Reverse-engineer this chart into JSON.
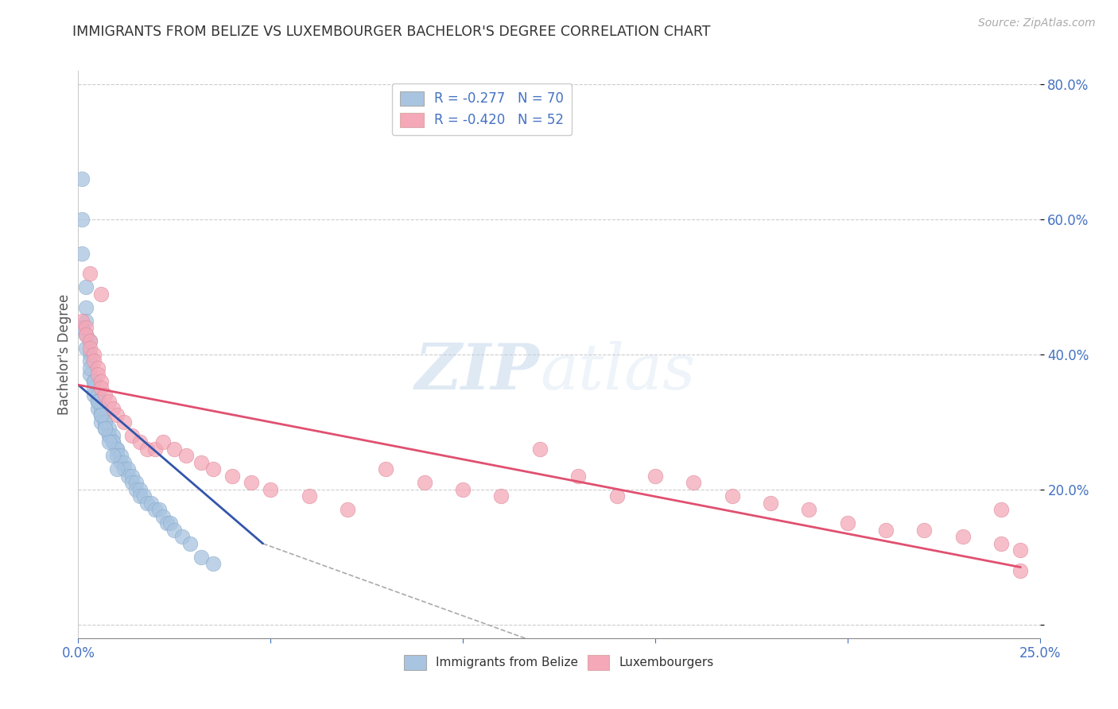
{
  "title": "IMMIGRANTS FROM BELIZE VS LUXEMBOURGER BACHELOR'S DEGREE CORRELATION CHART",
  "source_text": "Source: ZipAtlas.com",
  "ylabel": "Bachelor's Degree",
  "right_ytick_vals": [
    0.0,
    0.2,
    0.4,
    0.6,
    0.8
  ],
  "right_yticklabels": [
    "",
    "20.0%",
    "40.0%",
    "60.0%",
    "80.0%"
  ],
  "xlim": [
    0.0,
    0.25
  ],
  "ylim": [
    -0.02,
    0.82
  ],
  "xtick_vals": [
    0.0,
    0.05,
    0.1,
    0.15,
    0.2,
    0.25
  ],
  "xticklabels": [
    "0.0%",
    "",
    "",
    "",
    "",
    "25.0%"
  ],
  "legend_r1": "R = -0.277   N = 70",
  "legend_r2": "R = -0.420   N = 52",
  "blue_color": "#a8c4e0",
  "pink_color": "#f4a8b8",
  "blue_line_color": "#3355aa",
  "pink_line_color": "#e05070",
  "watermark_zip": "ZIP",
  "watermark_atlas": "atlas",
  "background_color": "#ffffff",
  "grid_color": "#cccccc",
  "blue_scatter_x": [
    0.001,
    0.001,
    0.001,
    0.002,
    0.002,
    0.002,
    0.002,
    0.003,
    0.003,
    0.003,
    0.003,
    0.004,
    0.004,
    0.004,
    0.004,
    0.005,
    0.005,
    0.005,
    0.005,
    0.006,
    0.006,
    0.006,
    0.006,
    0.007,
    0.007,
    0.007,
    0.008,
    0.008,
    0.008,
    0.009,
    0.009,
    0.009,
    0.01,
    0.01,
    0.01,
    0.011,
    0.011,
    0.012,
    0.012,
    0.013,
    0.013,
    0.014,
    0.014,
    0.015,
    0.015,
    0.016,
    0.016,
    0.017,
    0.018,
    0.019,
    0.02,
    0.021,
    0.022,
    0.023,
    0.024,
    0.025,
    0.027,
    0.029,
    0.032,
    0.035,
    0.001,
    0.002,
    0.003,
    0.004,
    0.005,
    0.006,
    0.007,
    0.008,
    0.009,
    0.01
  ],
  "blue_scatter_y": [
    0.66,
    0.6,
    0.55,
    0.5,
    0.47,
    0.45,
    0.43,
    0.42,
    0.4,
    0.39,
    0.37,
    0.36,
    0.36,
    0.35,
    0.34,
    0.34,
    0.33,
    0.33,
    0.32,
    0.32,
    0.31,
    0.31,
    0.3,
    0.3,
    0.3,
    0.29,
    0.29,
    0.28,
    0.28,
    0.28,
    0.27,
    0.27,
    0.26,
    0.26,
    0.25,
    0.25,
    0.24,
    0.24,
    0.23,
    0.23,
    0.22,
    0.22,
    0.21,
    0.21,
    0.2,
    0.2,
    0.19,
    0.19,
    0.18,
    0.18,
    0.17,
    0.17,
    0.16,
    0.15,
    0.15,
    0.14,
    0.13,
    0.12,
    0.1,
    0.09,
    0.44,
    0.41,
    0.38,
    0.36,
    0.33,
    0.31,
    0.29,
    0.27,
    0.25,
    0.23
  ],
  "pink_scatter_x": [
    0.001,
    0.002,
    0.002,
    0.003,
    0.003,
    0.004,
    0.004,
    0.005,
    0.005,
    0.006,
    0.006,
    0.007,
    0.008,
    0.009,
    0.01,
    0.012,
    0.014,
    0.016,
    0.018,
    0.02,
    0.022,
    0.025,
    0.028,
    0.032,
    0.035,
    0.04,
    0.045,
    0.05,
    0.06,
    0.07,
    0.08,
    0.09,
    0.1,
    0.11,
    0.12,
    0.13,
    0.14,
    0.15,
    0.16,
    0.17,
    0.18,
    0.19,
    0.2,
    0.21,
    0.22,
    0.23,
    0.24,
    0.245,
    0.245,
    0.24,
    0.003,
    0.006
  ],
  "pink_scatter_y": [
    0.45,
    0.44,
    0.43,
    0.42,
    0.41,
    0.4,
    0.39,
    0.38,
    0.37,
    0.36,
    0.35,
    0.34,
    0.33,
    0.32,
    0.31,
    0.3,
    0.28,
    0.27,
    0.26,
    0.26,
    0.27,
    0.26,
    0.25,
    0.24,
    0.23,
    0.22,
    0.21,
    0.2,
    0.19,
    0.17,
    0.23,
    0.21,
    0.2,
    0.19,
    0.26,
    0.22,
    0.19,
    0.22,
    0.21,
    0.19,
    0.18,
    0.17,
    0.15,
    0.14,
    0.14,
    0.13,
    0.12,
    0.11,
    0.08,
    0.17,
    0.52,
    0.49
  ],
  "blue_line_x": [
    0.0,
    0.048
  ],
  "blue_line_y": [
    0.355,
    0.12
  ],
  "dashed_line_x": [
    0.048,
    0.155
  ],
  "dashed_line_y": [
    0.12,
    -0.1
  ],
  "pink_line_x": [
    0.0,
    0.245
  ],
  "pink_line_y": [
    0.355,
    0.085
  ]
}
